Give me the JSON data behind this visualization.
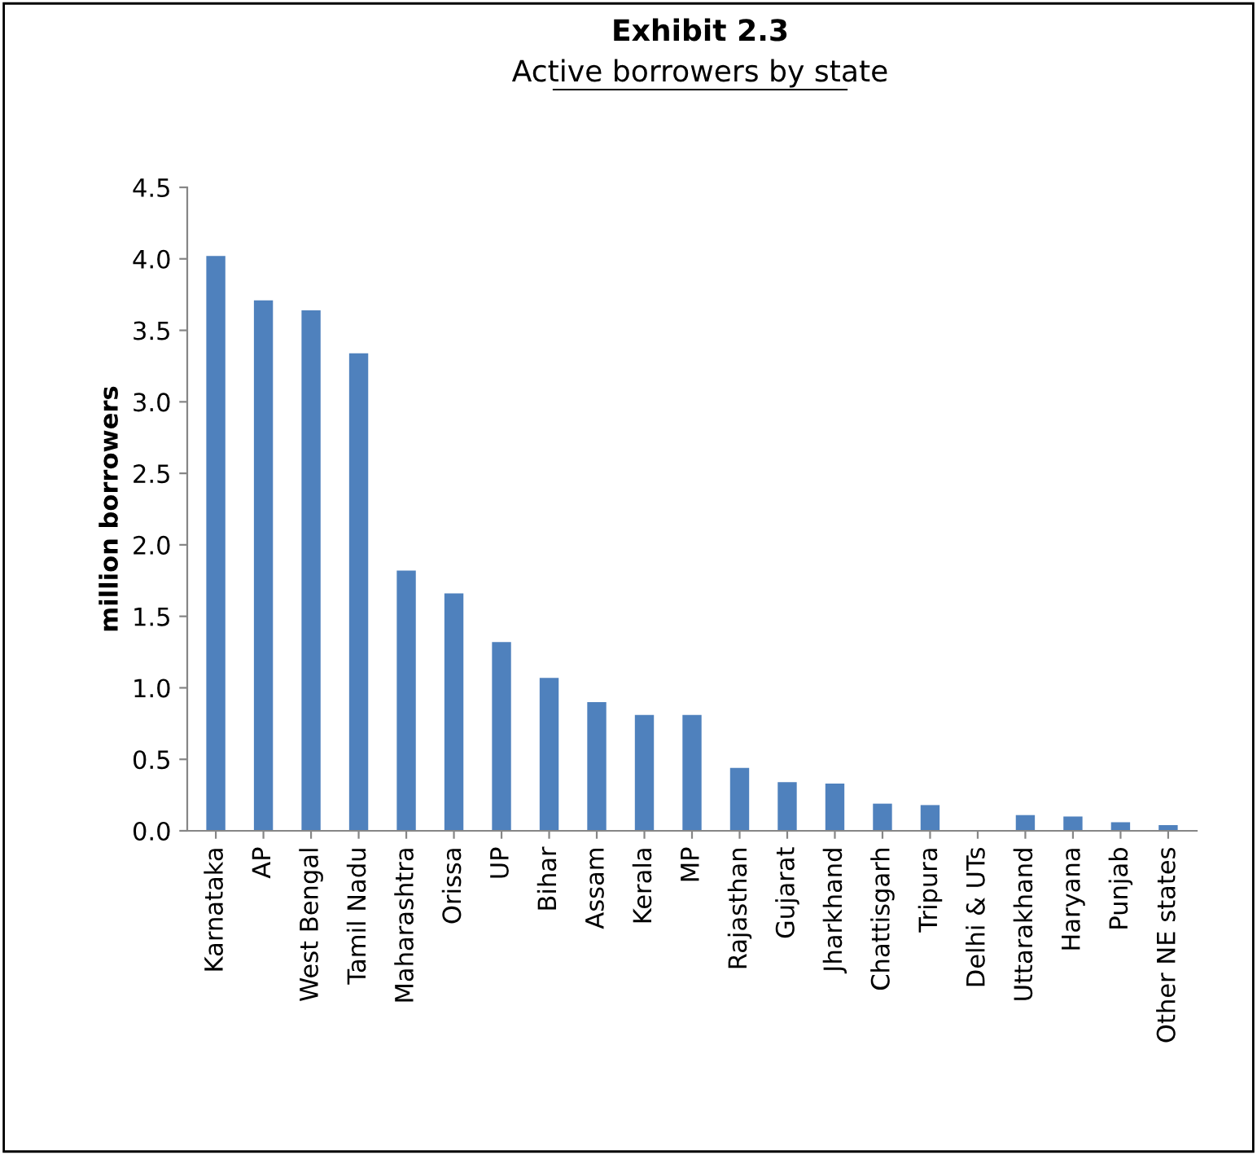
{
  "chart_data": {
    "type": "bar",
    "title": "Exhibit 2.3",
    "subtitle": "Active borrowers by state",
    "ylabel": "million borrowers",
    "categories": [
      "Karnataka",
      "AP",
      "West Bengal",
      "Tamil Nadu",
      "Maharashtra",
      "Orissa",
      "UP",
      "Bihar",
      "Assam",
      "Kerala",
      "MP",
      "Rajasthan",
      "Gujarat",
      "Jharkhand",
      "Chattisgarh",
      "Tripura",
      "Delhi & UTs",
      "Uttarakhand",
      "Haryana",
      "Punjab",
      "Other NE states"
    ],
    "values": [
      4.02,
      3.71,
      3.64,
      3.34,
      1.82,
      1.66,
      1.32,
      1.07,
      0.9,
      0.81,
      0.81,
      0.44,
      0.34,
      0.33,
      0.19,
      0.18,
      0.0,
      0.11,
      0.1,
      0.06,
      0.04
    ],
    "color": "#4f81bd",
    "ylim": [
      0,
      4.5
    ],
    "yticks": [
      {
        "value": 0,
        "label": "0.0"
      },
      0.5,
      {
        "value": 1,
        "label": "1.0"
      },
      1.5,
      {
        "value": 2,
        "label": "2.0"
      },
      2.5,
      {
        "value": 3,
        "label": "3.0"
      },
      3.5,
      {
        "value": 4,
        "label": "4.0"
      },
      4.5
    ],
    "grid": false,
    "legend": false
  }
}
